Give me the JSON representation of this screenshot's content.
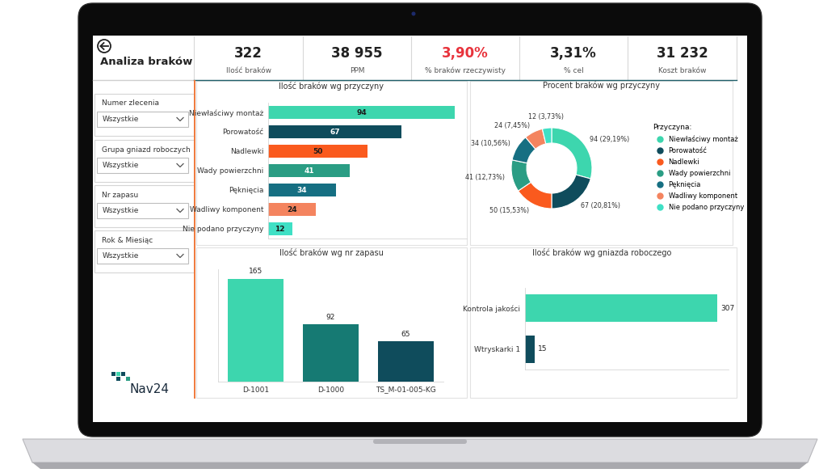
{
  "header": {
    "title": "Analiza braków"
  },
  "kpis": [
    {
      "value": "322",
      "label": "Ilość braków"
    },
    {
      "value": "38 955",
      "label": "PPM"
    },
    {
      "value": "3,90%",
      "label": "% braków rzeczywisty",
      "color": "#e8333c"
    },
    {
      "value": "3,31%",
      "label": "% cel"
    },
    {
      "value": "31 232",
      "label": "Koszt braków"
    }
  ],
  "filters": [
    {
      "label": "Numer zlecenia",
      "value": "Wszystkie"
    },
    {
      "label": "Grupa gniazd roboczych",
      "value": "Wszystkie"
    },
    {
      "label": "Nr zapasu",
      "value": "Wszystkie"
    },
    {
      "label": "Rok & Miesiąc",
      "value": "Wszystkie"
    }
  ],
  "logo": "Nav24",
  "chart_data": [
    {
      "type": "bar",
      "title": "Ilość braków wg przyczyny",
      "orientation": "horizontal",
      "categories": [
        "Niewłaściwy montaż",
        "Porowatość",
        "Nadlewki",
        "Wady powierzchni",
        "Pęknięcia",
        "Wadliwy komponent",
        "Nie podano przyczyny"
      ],
      "values": [
        94,
        67,
        50,
        41,
        34,
        24,
        12
      ],
      "colors": [
        "#3dd6ae",
        "#0f4c5c",
        "#fa5a1e",
        "#2a9d84",
        "#166f82",
        "#f4845f",
        "#3fe0c5"
      ],
      "xlim": [
        0,
        100
      ],
      "xticks": [],
      "data_labels": true,
      "tick_labels": "y"
    },
    {
      "type": "pie",
      "title": "Procent braków wg przyczyny",
      "categories": [
        "Niewłaściwy montaż",
        "Porowatość",
        "Nadlewki",
        "Wady powierzchni",
        "Pęknięcia",
        "Wadliwy komponent",
        "Nie podano przyczyny"
      ],
      "values": [
        94,
        67,
        50,
        41,
        34,
        24,
        12
      ],
      "value_labels": [
        "94 (29,19%)",
        "67 (20,81%)",
        "50 (15,53%)",
        "41 (12,73%)",
        "34 (10,56%)",
        "24 (7,45%)",
        "12 (3,73%)"
      ],
      "colors": [
        "#3dd6ae",
        "#0f4c5c",
        "#fa5a1e",
        "#2a9d84",
        "#166f82",
        "#f4845f",
        "#3fe0c5"
      ],
      "legend": "upper left",
      "legend_title": "Przyczyna:",
      "data_labels": true
    },
    {
      "type": "bar",
      "title": "Ilość braków wg nr zapasu",
      "categories": [
        "D-1001",
        "D-1000",
        "TS_M-01-005-KG"
      ],
      "values": [
        165,
        92,
        65
      ],
      "colors": [
        "#3dd6ae",
        "#167a73",
        "#0f4c5c"
      ],
      "ylim": [
        0,
        180
      ],
      "yticks": [],
      "data_labels": true,
      "tick_labels": "x"
    },
    {
      "type": "bar",
      "title": "Ilość braków wg gniazda roboczego",
      "orientation": "horizontal",
      "categories": [
        "Kontrola jakości",
        "Wtryskarki 1"
      ],
      "values": [
        307,
        15
      ],
      "colors": [
        "#3dd6ae",
        "#0f4c5c"
      ],
      "xlim": [
        0,
        325
      ],
      "xticks": [],
      "data_labels": true,
      "tick_labels": "y"
    }
  ]
}
